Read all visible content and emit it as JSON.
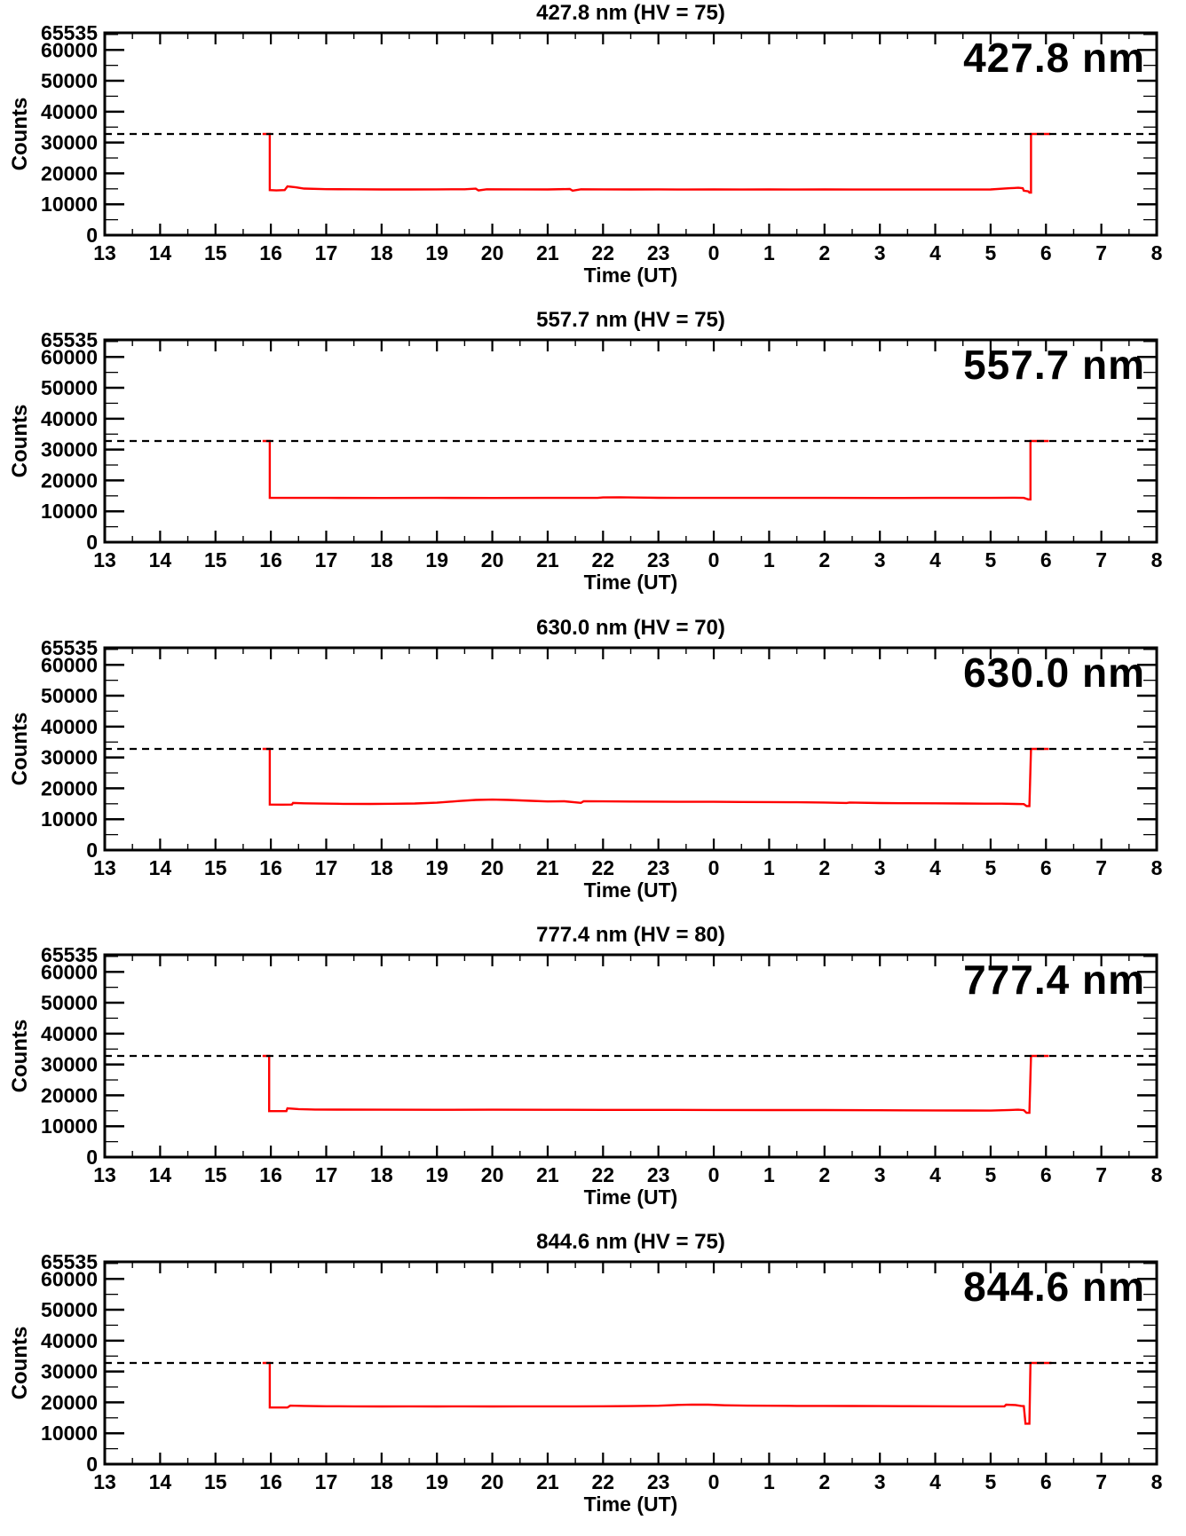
{
  "page": {
    "background": "#ffffff",
    "text_color": "#000000"
  },
  "chart_data": [
    {
      "type": "line",
      "title": "427.8 nm (HV = 75)",
      "corner_label": "427.8 nm",
      "x": {
        "label": "Time (UT)",
        "min": 13,
        "max": 32,
        "major_step": 1,
        "minor_step": 0.5,
        "tick_labels": [
          "13",
          "14",
          "15",
          "16",
          "17",
          "18",
          "19",
          "20",
          "21",
          "22",
          "23",
          "0",
          "1",
          "2",
          "3",
          "4",
          "5",
          "6",
          "7",
          "8"
        ]
      },
      "y": {
        "label": "Counts",
        "min": 0,
        "max": 65535,
        "minor_step": 5000,
        "major_ticks": [
          0,
          10000,
          20000,
          30000,
          40000,
          50000,
          60000,
          65535
        ],
        "tick_labels": [
          "0",
          "10000",
          "20000",
          "30000",
          "40000",
          "50000",
          "60000",
          "65535"
        ]
      },
      "reference_line": 32767,
      "line_color": "#ff0000",
      "series": {
        "name": "counts",
        "points": [
          [
            15.85,
            32767
          ],
          [
            15.98,
            32767
          ],
          [
            15.98,
            14600
          ],
          [
            16.1,
            14500
          ],
          [
            16.25,
            14600
          ],
          [
            16.3,
            15800
          ],
          [
            16.45,
            15500
          ],
          [
            16.6,
            15100
          ],
          [
            17,
            14900
          ],
          [
            17.5,
            14850
          ],
          [
            18,
            14800
          ],
          [
            18.5,
            14800
          ],
          [
            19,
            14820
          ],
          [
            19.5,
            14850
          ],
          [
            19.7,
            15050
          ],
          [
            19.75,
            14500
          ],
          [
            19.9,
            14850
          ],
          [
            20.5,
            14820
          ],
          [
            21,
            14800
          ],
          [
            21.4,
            14950
          ],
          [
            21.45,
            14400
          ],
          [
            21.6,
            14850
          ],
          [
            22,
            14820
          ],
          [
            22.5,
            14800
          ],
          [
            23,
            14820
          ],
          [
            23.5,
            14780
          ],
          [
            24,
            14800
          ],
          [
            24.5,
            14780
          ],
          [
            25,
            14800
          ],
          [
            25.5,
            14780
          ],
          [
            26,
            14800
          ],
          [
            26.5,
            14780
          ],
          [
            27,
            14780
          ],
          [
            27.5,
            14760
          ],
          [
            28,
            14780
          ],
          [
            28.5,
            14760
          ],
          [
            29,
            14800
          ],
          [
            29.35,
            15200
          ],
          [
            29.5,
            15350
          ],
          [
            29.58,
            15200
          ],
          [
            29.6,
            14400
          ],
          [
            29.68,
            14200
          ],
          [
            29.7,
            13800
          ],
          [
            29.73,
            13800
          ],
          [
            29.73,
            32767
          ],
          [
            30.08,
            32767
          ]
        ]
      }
    },
    {
      "type": "line",
      "title": "557.7 nm (HV = 75)",
      "corner_label": "557.7 nm",
      "x": {
        "label": "Time (UT)",
        "min": 13,
        "max": 32,
        "major_step": 1,
        "minor_step": 0.5,
        "tick_labels": [
          "13",
          "14",
          "15",
          "16",
          "17",
          "18",
          "19",
          "20",
          "21",
          "22",
          "23",
          "0",
          "1",
          "2",
          "3",
          "4",
          "5",
          "6",
          "7",
          "8"
        ]
      },
      "y": {
        "label": "Counts",
        "min": 0,
        "max": 65535,
        "minor_step": 5000,
        "major_ticks": [
          0,
          10000,
          20000,
          30000,
          40000,
          50000,
          60000,
          65535
        ],
        "tick_labels": [
          "0",
          "10000",
          "20000",
          "30000",
          "40000",
          "50000",
          "60000",
          "65535"
        ]
      },
      "reference_line": 32767,
      "line_color": "#ff0000",
      "series": {
        "name": "counts",
        "points": [
          [
            15.85,
            32767
          ],
          [
            15.98,
            32767
          ],
          [
            15.98,
            14350
          ],
          [
            16.5,
            14330
          ],
          [
            17,
            14330
          ],
          [
            18,
            14320
          ],
          [
            19,
            14330
          ],
          [
            20,
            14320
          ],
          [
            21,
            14330
          ],
          [
            21.9,
            14330
          ],
          [
            22,
            14500
          ],
          [
            22.3,
            14550
          ],
          [
            22.6,
            14450
          ],
          [
            23,
            14380
          ],
          [
            23.5,
            14350
          ],
          [
            24,
            14340
          ],
          [
            25,
            14330
          ],
          [
            26,
            14330
          ],
          [
            27,
            14320
          ],
          [
            28,
            14330
          ],
          [
            29,
            14330
          ],
          [
            29.4,
            14400
          ],
          [
            29.6,
            14350
          ],
          [
            29.68,
            13850
          ],
          [
            29.72,
            13850
          ],
          [
            29.72,
            32767
          ],
          [
            30.05,
            32767
          ]
        ]
      }
    },
    {
      "type": "line",
      "title": "630.0 nm (HV = 70)",
      "corner_label": "630.0 nm",
      "x": {
        "label": "Time (UT)",
        "min": 13,
        "max": 32,
        "major_step": 1,
        "minor_step": 0.5,
        "tick_labels": [
          "13",
          "14",
          "15",
          "16",
          "17",
          "18",
          "19",
          "20",
          "21",
          "22",
          "23",
          "0",
          "1",
          "2",
          "3",
          "4",
          "5",
          "6",
          "7",
          "8"
        ]
      },
      "y": {
        "label": "Counts",
        "min": 0,
        "max": 65535,
        "minor_step": 5000,
        "major_ticks": [
          0,
          10000,
          20000,
          30000,
          40000,
          50000,
          60000,
          65535
        ],
        "tick_labels": [
          "0",
          "10000",
          "20000",
          "30000",
          "40000",
          "50000",
          "60000",
          "65535"
        ]
      },
      "reference_line": 32767,
      "line_color": "#ff0000",
      "series": {
        "name": "counts",
        "points": [
          [
            15.85,
            32767
          ],
          [
            15.98,
            32767
          ],
          [
            15.98,
            14750
          ],
          [
            16.2,
            14730
          ],
          [
            16.38,
            14750
          ],
          [
            16.4,
            15250
          ],
          [
            16.6,
            15150
          ],
          [
            16.9,
            15050
          ],
          [
            17.3,
            14980
          ],
          [
            17.8,
            14960
          ],
          [
            18.2,
            15000
          ],
          [
            18.6,
            15100
          ],
          [
            19,
            15350
          ],
          [
            19.4,
            15900
          ],
          [
            19.7,
            16250
          ],
          [
            20,
            16350
          ],
          [
            20.3,
            16250
          ],
          [
            20.7,
            15950
          ],
          [
            21,
            15750
          ],
          [
            21.3,
            15800
          ],
          [
            21.6,
            15300
          ],
          [
            21.65,
            15800
          ],
          [
            22,
            15780
          ],
          [
            22.5,
            15720
          ],
          [
            23,
            15680
          ],
          [
            23.5,
            15640
          ],
          [
            24,
            15640
          ],
          [
            24.5,
            15580
          ],
          [
            25,
            15540
          ],
          [
            25.5,
            15480
          ],
          [
            26,
            15420
          ],
          [
            26.4,
            15260
          ],
          [
            26.45,
            15420
          ],
          [
            27,
            15240
          ],
          [
            27.5,
            15180
          ],
          [
            28,
            15140
          ],
          [
            28.5,
            15080
          ],
          [
            28.9,
            15040
          ],
          [
            29.2,
            15020
          ],
          [
            29.45,
            14950
          ],
          [
            29.6,
            14900
          ],
          [
            29.65,
            14250
          ],
          [
            29.7,
            14250
          ],
          [
            29.73,
            32767
          ],
          [
            30.05,
            32767
          ]
        ]
      }
    },
    {
      "type": "line",
      "title": "777.4 nm (HV = 80)",
      "corner_label": "777.4 nm",
      "x": {
        "label": "Time (UT)",
        "min": 13,
        "max": 32,
        "major_step": 1,
        "minor_step": 0.5,
        "tick_labels": [
          "13",
          "14",
          "15",
          "16",
          "17",
          "18",
          "19",
          "20",
          "21",
          "22",
          "23",
          "0",
          "1",
          "2",
          "3",
          "4",
          "5",
          "6",
          "7",
          "8"
        ]
      },
      "y": {
        "label": "Counts",
        "min": 0,
        "max": 65535,
        "minor_step": 5000,
        "major_ticks": [
          0,
          10000,
          20000,
          30000,
          40000,
          50000,
          60000,
          65535
        ],
        "tick_labels": [
          "0",
          "10000",
          "20000",
          "30000",
          "40000",
          "50000",
          "60000",
          "65535"
        ]
      },
      "reference_line": 32767,
      "line_color": "#ff0000",
      "series": {
        "name": "counts",
        "points": [
          [
            15.85,
            32767
          ],
          [
            15.97,
            32767
          ],
          [
            15.97,
            14900
          ],
          [
            16.28,
            14880
          ],
          [
            16.3,
            15800
          ],
          [
            16.5,
            15550
          ],
          [
            16.8,
            15400
          ],
          [
            17.2,
            15380
          ],
          [
            18,
            15350
          ],
          [
            19,
            15320
          ],
          [
            20,
            15350
          ],
          [
            21,
            15320
          ],
          [
            22,
            15300
          ],
          [
            23,
            15280
          ],
          [
            24,
            15260
          ],
          [
            25,
            15240
          ],
          [
            26,
            15220
          ],
          [
            27,
            15170
          ],
          [
            28,
            15120
          ],
          [
            28.6,
            15080
          ],
          [
            29,
            15060
          ],
          [
            29.35,
            15250
          ],
          [
            29.5,
            15350
          ],
          [
            29.6,
            15200
          ],
          [
            29.65,
            14350
          ],
          [
            29.7,
            14350
          ],
          [
            29.73,
            32767
          ],
          [
            30.05,
            32767
          ]
        ]
      }
    },
    {
      "type": "line",
      "title": "844.6 nm (HV = 75)",
      "corner_label": "844.6 nm",
      "x": {
        "label": "Time (UT)",
        "min": 13,
        "max": 32,
        "major_step": 1,
        "minor_step": 0.5,
        "tick_labels": [
          "13",
          "14",
          "15",
          "16",
          "17",
          "18",
          "19",
          "20",
          "21",
          "22",
          "23",
          "0",
          "1",
          "2",
          "3",
          "4",
          "5",
          "6",
          "7",
          "8"
        ]
      },
      "y": {
        "label": "Counts",
        "min": 0,
        "max": 65535,
        "minor_step": 5000,
        "major_ticks": [
          0,
          10000,
          20000,
          30000,
          40000,
          50000,
          60000,
          65535
        ],
        "tick_labels": [
          "0",
          "10000",
          "20000",
          "30000",
          "40000",
          "50000",
          "60000",
          "65535"
        ]
      },
      "reference_line": 32767,
      "line_color": "#ff0000",
      "series": {
        "name": "counts",
        "points": [
          [
            15.85,
            32767
          ],
          [
            15.98,
            32767
          ],
          [
            15.98,
            18350
          ],
          [
            16.3,
            18330
          ],
          [
            16.35,
            18950
          ],
          [
            16.6,
            18850
          ],
          [
            17,
            18750
          ],
          [
            17.5,
            18700
          ],
          [
            18,
            18680
          ],
          [
            18.5,
            18700
          ],
          [
            19,
            18680
          ],
          [
            19.5,
            18700
          ],
          [
            20,
            18680
          ],
          [
            20.5,
            18700
          ],
          [
            21,
            18700
          ],
          [
            21.5,
            18720
          ],
          [
            22,
            18740
          ],
          [
            22.5,
            18800
          ],
          [
            23,
            18900
          ],
          [
            23.3,
            19150
          ],
          [
            23.6,
            19300
          ],
          [
            23.9,
            19250
          ],
          [
            24.2,
            19050
          ],
          [
            24.6,
            18950
          ],
          [
            25,
            18900
          ],
          [
            25.5,
            18870
          ],
          [
            26,
            18850
          ],
          [
            26.5,
            18820
          ],
          [
            27,
            18800
          ],
          [
            27.5,
            18780
          ],
          [
            28,
            18750
          ],
          [
            28.5,
            18720
          ],
          [
            28.9,
            18700
          ],
          [
            29.25,
            18700
          ],
          [
            29.28,
            19250
          ],
          [
            29.45,
            19150
          ],
          [
            29.55,
            18850
          ],
          [
            29.6,
            18800
          ],
          [
            29.63,
            13100
          ],
          [
            29.7,
            13100
          ],
          [
            29.72,
            32767
          ],
          [
            30.1,
            32767
          ]
        ]
      }
    }
  ]
}
